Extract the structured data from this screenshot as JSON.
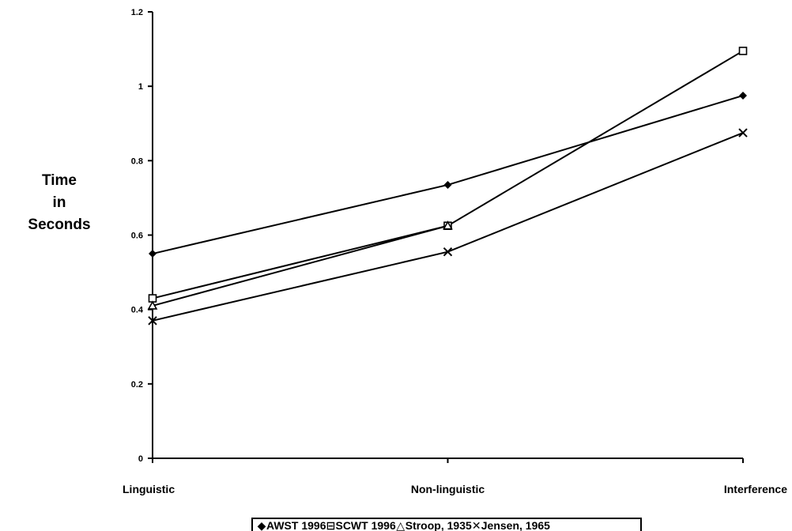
{
  "chart_data": {
    "type": "line",
    "title": "",
    "xlabel": "",
    "ylabel_lines": [
      "Time",
      "in",
      "Seconds"
    ],
    "categories": [
      "Linguistic",
      "Non-linguistic",
      "Interference"
    ],
    "ylim": [
      0,
      1.2
    ],
    "yticks": [
      "0",
      "0.2",
      "0.4",
      "0.6",
      "0.8",
      "1",
      "1.2"
    ],
    "grid": false,
    "legend_position": "bottom",
    "series": [
      {
        "name": "AWST 1996",
        "marker": "diamond",
        "values": [
          0.55,
          0.735,
          0.975
        ]
      },
      {
        "name": "SCWT 1996",
        "marker": "square",
        "values": [
          0.43,
          0.625,
          1.095
        ]
      },
      {
        "name": "Stroop, 1935",
        "marker": "triangle",
        "values": [
          0.41,
          0.625,
          null
        ]
      },
      {
        "name": "Jensen, 1965",
        "marker": "x",
        "values": [
          0.37,
          0.555,
          0.875
        ]
      }
    ]
  }
}
